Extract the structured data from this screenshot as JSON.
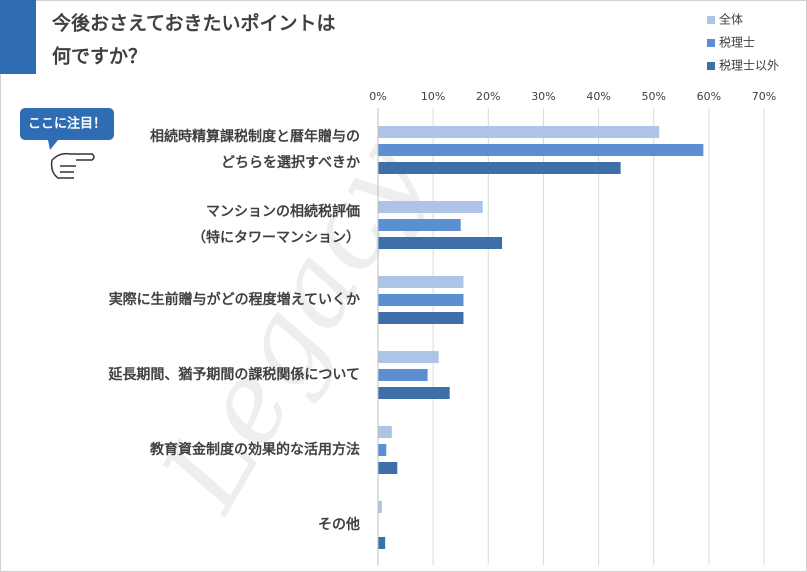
{
  "chart_data": {
    "type": "bar",
    "orientation": "horizontal",
    "title": [
      "今後おさえておきたいポイントは",
      "何ですか？"
    ],
    "annotation": "ここに注目！",
    "watermark": "Legacy",
    "categories": [
      [
        "相続時精算課税制度と暦年贈与の",
        "どちらを選択すべきか"
      ],
      [
        "マンションの相続税評価",
        "（特にタワーマンション）"
      ],
      [
        "実際に生前贈与がどの程度増えていくか"
      ],
      [
        "延長期間、猶予期間の課税関係について"
      ],
      [
        "教育資金制度の効果的な活用方法"
      ],
      [
        "その他"
      ]
    ],
    "series": [
      {
        "name": "全体",
        "color": "#aec4e6",
        "values": [
          51,
          19,
          15.5,
          11,
          2.5,
          0.7
        ]
      },
      {
        "name": "税理士",
        "color": "#5b8fd2",
        "values": [
          59,
          15,
          15.5,
          9,
          1.5,
          0
        ]
      },
      {
        "name": "税理士以外",
        "color": "#3f6fa9",
        "values": [
          44,
          22.5,
          15.5,
          13,
          3.5,
          1.3
        ]
      }
    ],
    "xlim": [
      0,
      70
    ],
    "xticks": [
      {
        "value": 0,
        "label": "0%"
      },
      {
        "value": 10,
        "label": "10%"
      },
      {
        "value": 20,
        "label": "20%"
      },
      {
        "value": 30,
        "label": "30%"
      },
      {
        "value": 40,
        "label": "40%"
      },
      {
        "value": 50,
        "label": "50%"
      },
      {
        "value": 60,
        "label": "60%"
      },
      {
        "value": 70,
        "label": "70%"
      }
    ],
    "grid": true,
    "legend": "top-right"
  }
}
